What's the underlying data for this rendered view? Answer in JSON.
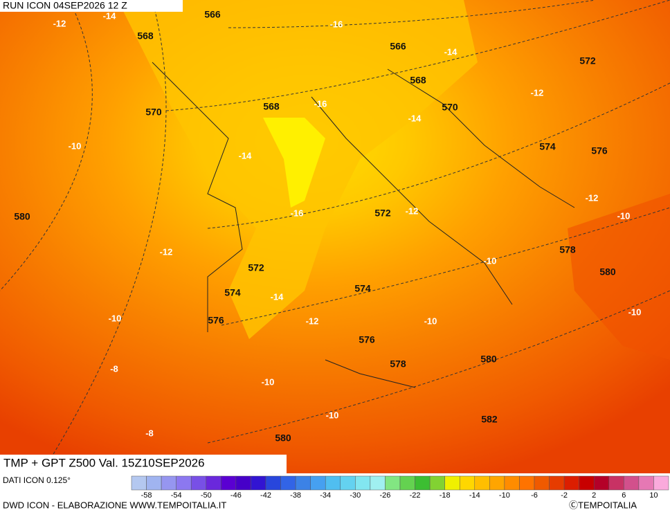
{
  "header": {
    "run": "RUN ICON 04SEP2026 12 Z"
  },
  "map": {
    "title": "TMP + GPT Z500 Val. 15Z10SEP2026",
    "height_labels": [
      "566",
      "568",
      "566",
      "568",
      "572",
      "570",
      "568",
      "570",
      "574",
      "576",
      "580",
      "572",
      "578",
      "572",
      "580",
      "574",
      "574",
      "576",
      "576",
      "580",
      "578",
      "582",
      "580"
    ],
    "temperature_labels": [
      "-14",
      "-12",
      "-16",
      "-14",
      "-12",
      "-16",
      "-14",
      "-10",
      "-14",
      "-12",
      "-10",
      "-16",
      "-12",
      "-10",
      "-12",
      "-14",
      "-10",
      "-12",
      "-10",
      "-10",
      "-8",
      "-10",
      "-10",
      "-8"
    ]
  },
  "colorbar": {
    "source": "DATI ICON 0.125°",
    "ticks": [
      -58,
      -54,
      -50,
      -46,
      -42,
      -38,
      -34,
      -30,
      -26,
      -22,
      -18,
      -14,
      -10,
      -6,
      -2,
      2,
      6,
      10
    ]
  },
  "footer": {
    "credit": "DWD ICON - ELABORAZIONE WWW.TEMPOITALIA.IT",
    "brand": "ⒸTEMPOITALIA"
  }
}
